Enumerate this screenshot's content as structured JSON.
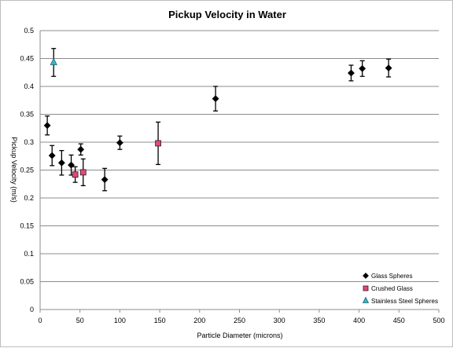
{
  "chart_data": {
    "type": "scatter",
    "title": "Pickup Velocity in Water",
    "xlabel": "Particle Diameter (microns)",
    "ylabel": "Pickup Velocity (m/s)",
    "xlim": [
      0,
      500
    ],
    "ylim": [
      0,
      0.5
    ],
    "x_ticks": [
      0,
      50,
      100,
      150,
      200,
      250,
      300,
      350,
      400,
      450,
      500
    ],
    "y_ticks": [
      0,
      0.05,
      0.1,
      0.15,
      0.2,
      0.25,
      0.3,
      0.35,
      0.4,
      0.45,
      0.5
    ],
    "grid": "horizontal",
    "legend_position": "bottom-right",
    "series": [
      {
        "name": "Glass Spheres",
        "marker": "diamond",
        "color": "#000000",
        "points": [
          {
            "x": 9,
            "y": 0.33,
            "err": 0.017
          },
          {
            "x": 15,
            "y": 0.276,
            "err": 0.018
          },
          {
            "x": 27,
            "y": 0.263,
            "err": 0.022
          },
          {
            "x": 39,
            "y": 0.259,
            "err": 0.018
          },
          {
            "x": 51,
            "y": 0.287,
            "err": 0.01
          },
          {
            "x": 81,
            "y": 0.233,
            "err": 0.02
          },
          {
            "x": 100,
            "y": 0.299,
            "err": 0.012
          },
          {
            "x": 220,
            "y": 0.378,
            "err": 0.022
          },
          {
            "x": 390,
            "y": 0.424,
            "err": 0.014
          },
          {
            "x": 404,
            "y": 0.432,
            "err": 0.014
          },
          {
            "x": 437,
            "y": 0.433,
            "err": 0.016
          }
        ]
      },
      {
        "name": "Crushed Glass",
        "marker": "square",
        "color": "#e8457b",
        "points": [
          {
            "x": 44,
            "y": 0.242,
            "err": 0.014
          },
          {
            "x": 54,
            "y": 0.246,
            "err": 0.024
          },
          {
            "x": 148,
            "y": 0.298,
            "err": 0.038
          }
        ]
      },
      {
        "name": "Stainless Steel Spheres",
        "marker": "triangle",
        "color": "#39b8c9",
        "points": [
          {
            "x": 17,
            "y": 0.443,
            "err": 0.025
          }
        ]
      }
    ]
  }
}
